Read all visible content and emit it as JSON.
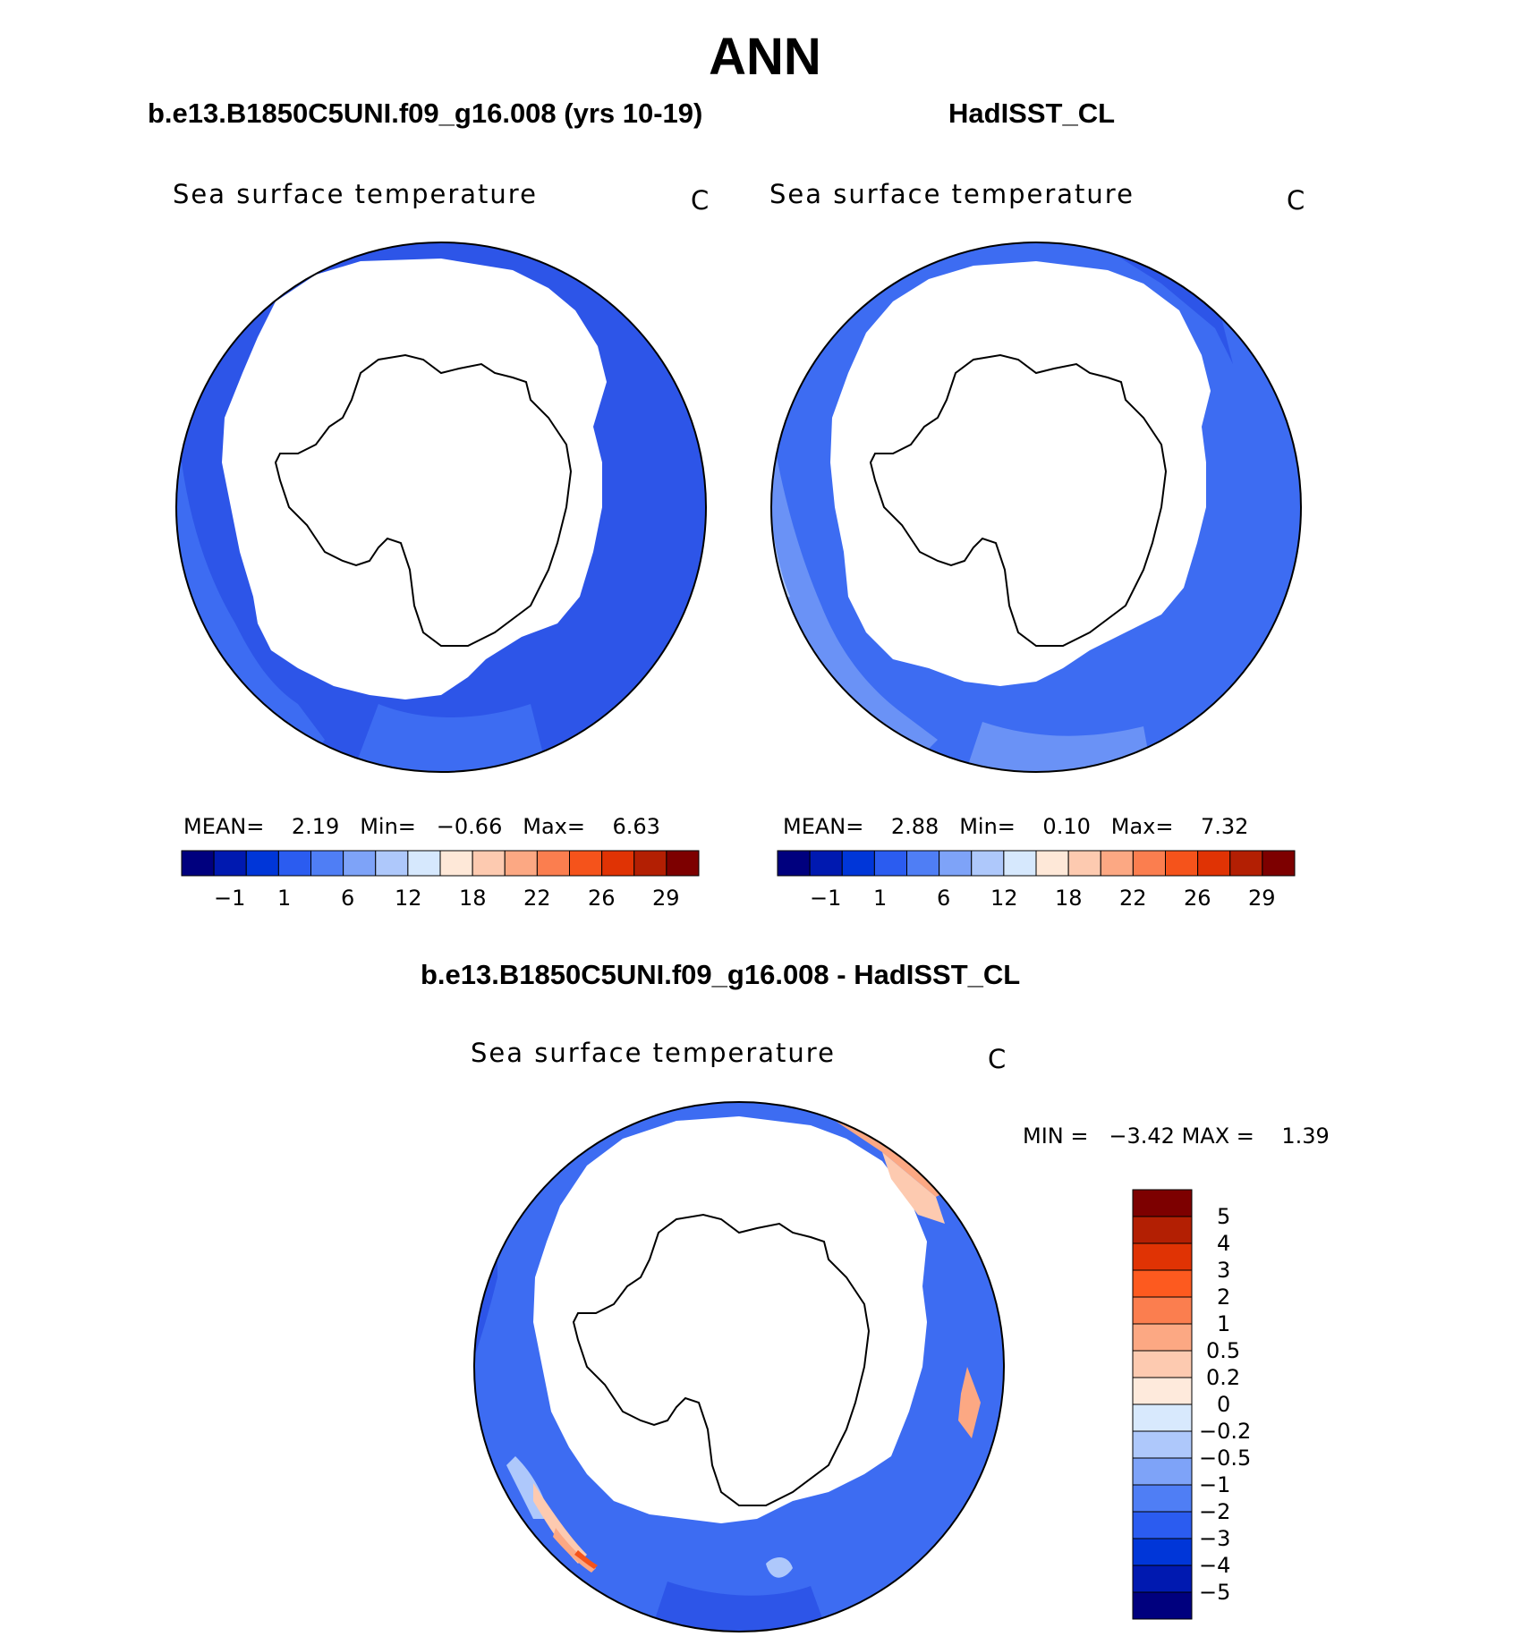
{
  "title": "ANN",
  "panels": [
    {
      "title": "b.e13.B1850C5UNI.f09_g16.008 (yrs 10-19)",
      "variable": "Sea surface temperature",
      "units": "C",
      "stats": {
        "mean_label": "MEAN=",
        "mean": "2.19",
        "min_label": "Min=",
        "min": "−0.66",
        "max_label": "Max=",
        "max": "6.63"
      }
    },
    {
      "title": "HadISST_CL",
      "variable": "Sea surface temperature",
      "units": "C",
      "stats": {
        "mean_label": "MEAN=",
        "mean": "2.88",
        "min_label": "Min=",
        "min": "0.10",
        "max_label": "Max=",
        "max": "7.32"
      }
    }
  ],
  "colorbar": {
    "colors": [
      "#00007e",
      "#0019b0",
      "#0036d8",
      "#2b5cf0",
      "#4f7ef5",
      "#7ea3f8",
      "#aec8fb",
      "#d6e8fd",
      "#fee8d8",
      "#fdcab0",
      "#fca883",
      "#fb7e4f",
      "#f5531b",
      "#e03304",
      "#b31f03",
      "#7d0000"
    ],
    "tick_labels": [
      "−1",
      "1",
      "6",
      "12",
      "18",
      "22",
      "26",
      "29"
    ]
  },
  "diff_panel": {
    "title": "b.e13.B1850C5UNI.f09_g16.008 - HadISST_CL",
    "variable": "Sea surface temperature",
    "units": "C",
    "stats": {
      "min_label": "MIN =",
      "min": "−3.42",
      "max_label": "MAX =",
      "max": "1.39"
    },
    "colorbar": {
      "colors": [
        "#7d0000",
        "#b31f03",
        "#e03304",
        "#fd5a1f",
        "#fb7e4f",
        "#fca883",
        "#fdcab0",
        "#feeadc",
        "#d8e9fd",
        "#aec8fb",
        "#7ea3f8",
        "#4f7ef5",
        "#2b5cf0",
        "#0036d8",
        "#0019b0",
        "#00007e"
      ],
      "tick_labels": [
        "5",
        "4",
        "3",
        "2",
        "1",
        "0.5",
        "0.2",
        "0",
        "−0.2",
        "−0.5",
        "−1",
        "−2",
        "−3",
        "−4",
        "−5"
      ]
    }
  },
  "map_colors": {
    "ocean_dark": "#2d55e8",
    "ocean_mid": "#3d6cf2",
    "ocean_light": "#6a92f6",
    "ocean_pale": "#aec8fb",
    "warm_light": "#fdcab0",
    "warm_mid": "#fca883",
    "warm_strong": "#f5531b"
  }
}
